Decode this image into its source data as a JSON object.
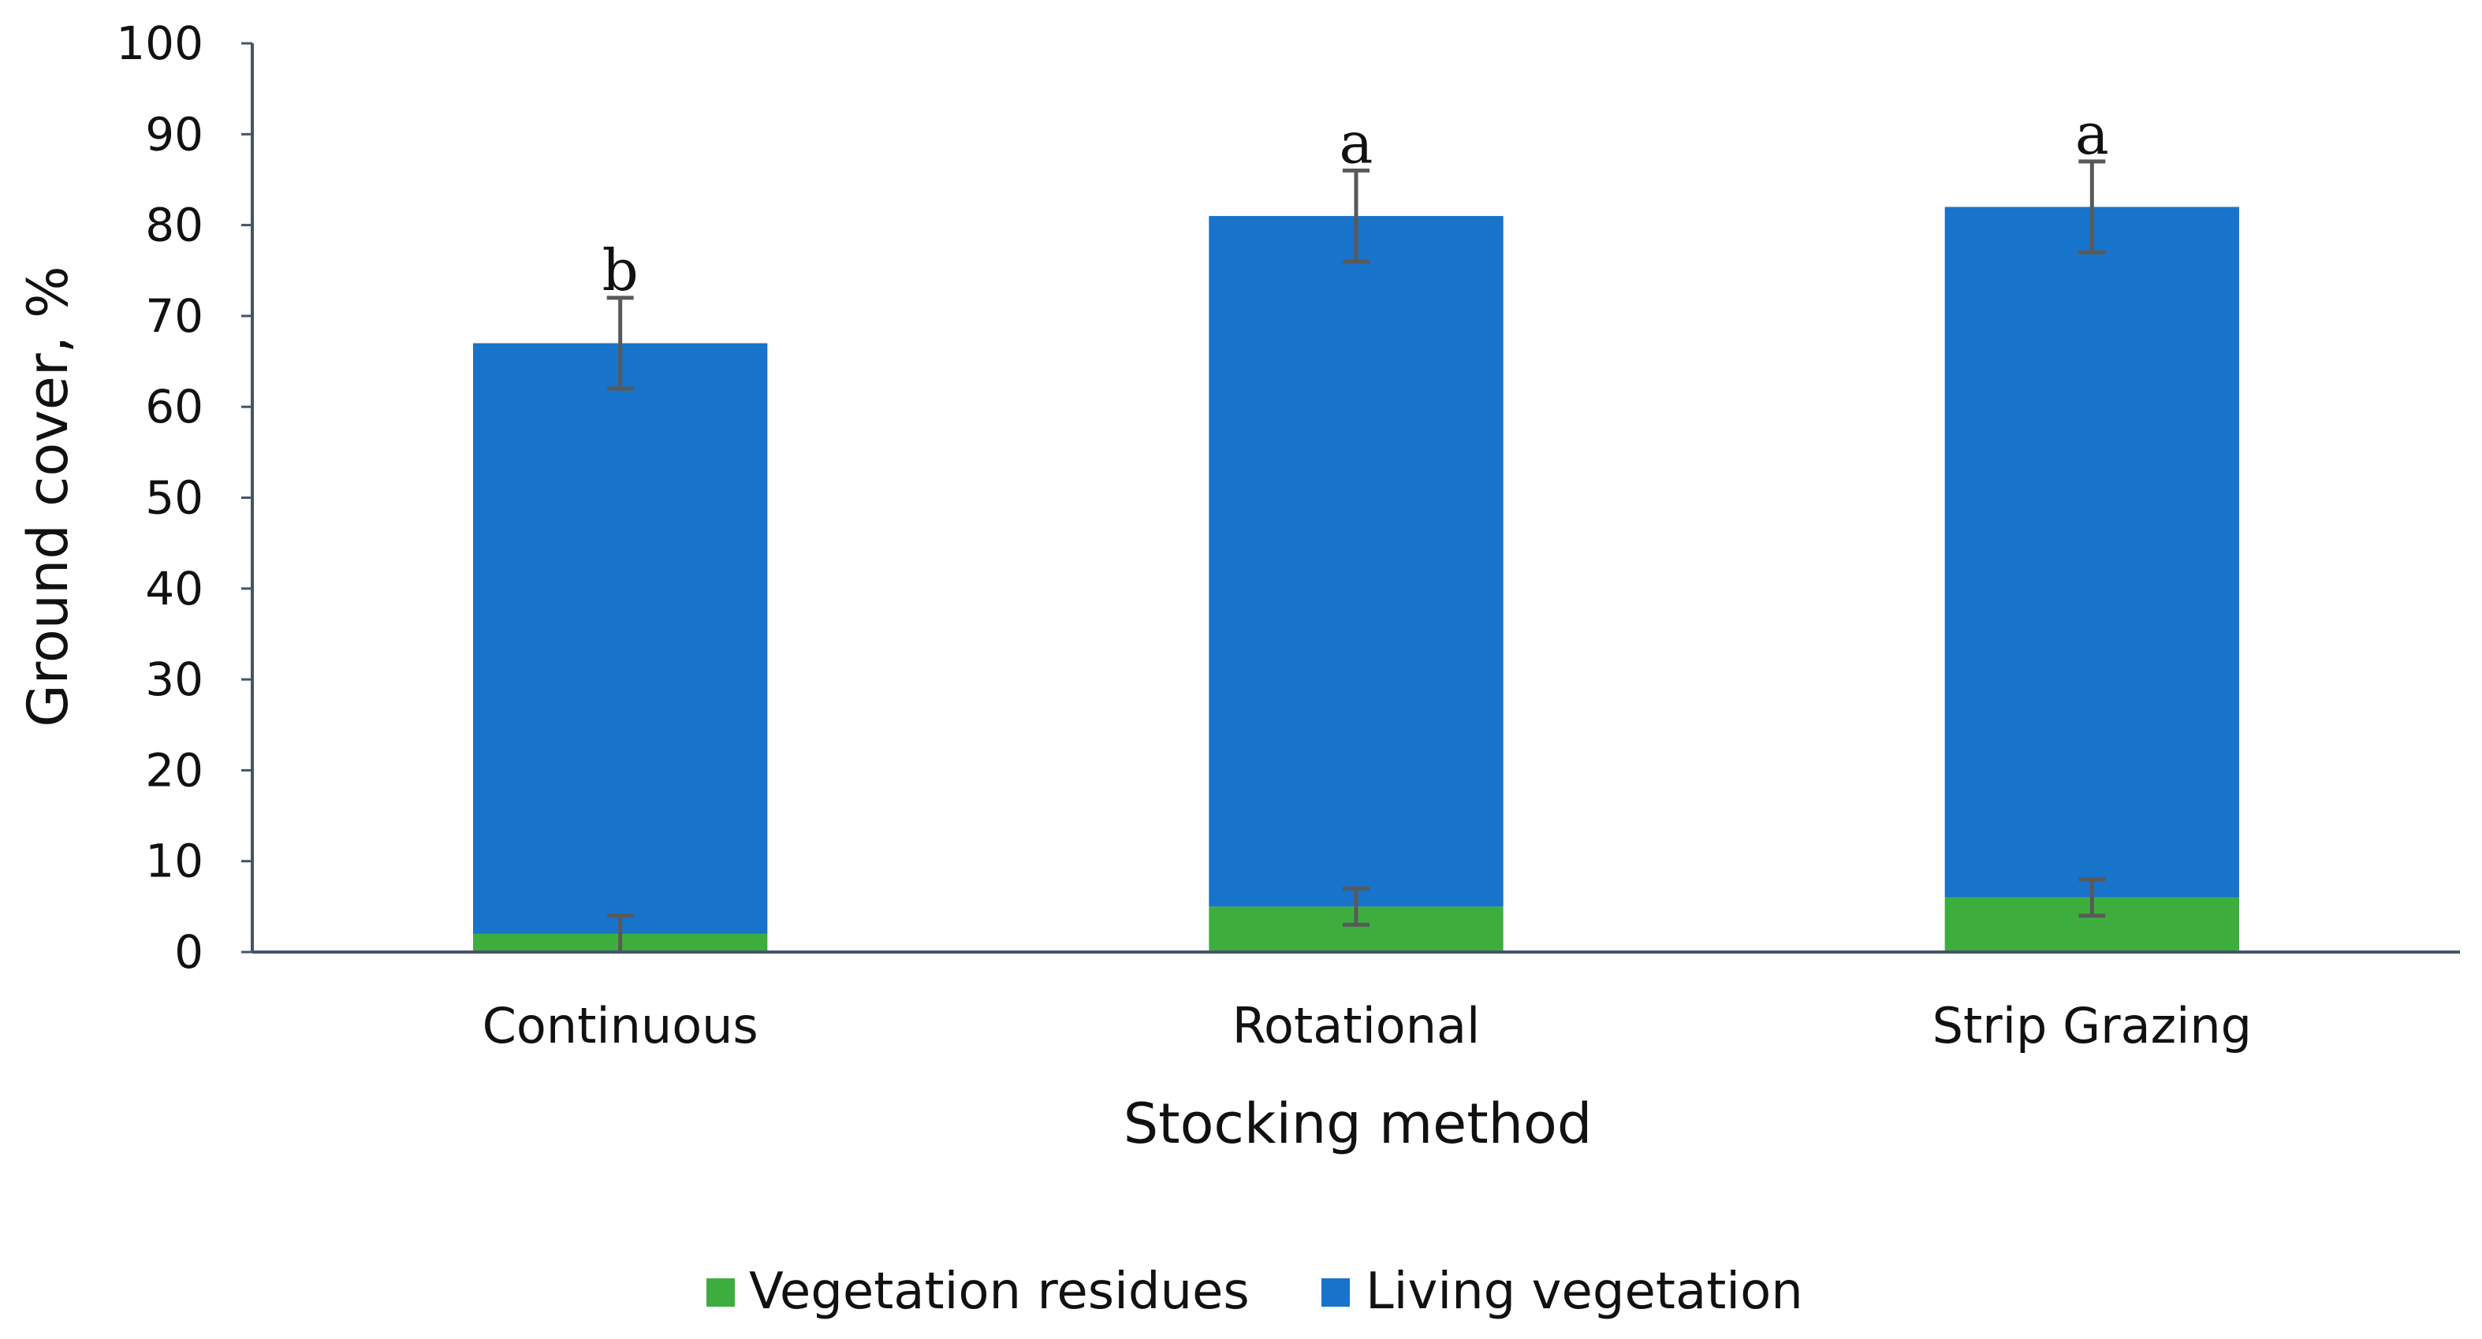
{
  "chart_data": {
    "type": "bar",
    "stacked": true,
    "title": "",
    "xlabel": "Stocking method",
    "ylabel": "Ground cover, %",
    "ylim": [
      0,
      100
    ],
    "yticks": [
      0,
      10,
      20,
      30,
      40,
      50,
      60,
      70,
      80,
      90,
      100
    ],
    "grid": false,
    "legend_position": "bottom",
    "categories": [
      "Continuous",
      "Rotational",
      "Strip Grazing"
    ],
    "series": [
      {
        "name": "Vegetation residues",
        "color": "#3DAE3D",
        "values": [
          2,
          5,
          6
        ],
        "errors": [
          2,
          2,
          2
        ]
      },
      {
        "name": "Living vegetation",
        "color": "#1873CA",
        "values": [
          65,
          76,
          76
        ],
        "errors": [
          5,
          5,
          5
        ]
      }
    ],
    "annotations": [
      "b",
      "a",
      "a"
    ],
    "colors": {
      "axis": "#44546A",
      "error_bar": "#595959"
    }
  }
}
